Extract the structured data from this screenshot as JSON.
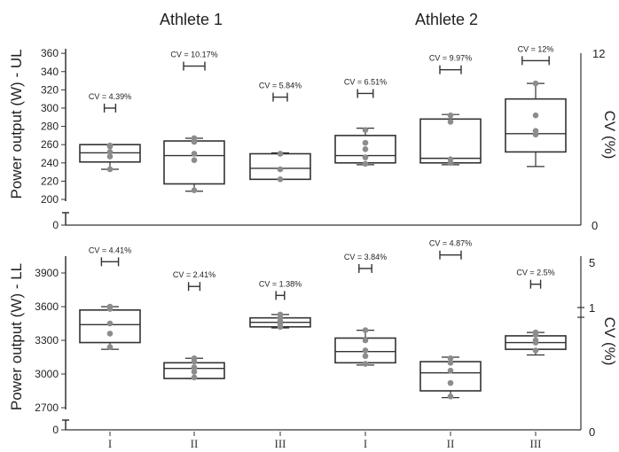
{
  "headers": [
    "Athlete 1",
    "Athlete 2"
  ],
  "chart_data": [
    {
      "type": "box",
      "ylabel": "Power output (W) - UL",
      "y2label": "CV (%)",
      "yticks": [
        200,
        220,
        240,
        260,
        280,
        300,
        320,
        340,
        360
      ],
      "ylim": [
        200,
        365
      ],
      "y2ticks": [
        "12",
        "0"
      ],
      "y_break_tick": "0",
      "categories": [
        "I",
        "II",
        "III",
        "I",
        "II",
        "III"
      ],
      "groups": [
        {
          "min": 233,
          "q1": 241,
          "median": 251,
          "q3": 260,
          "max": 260,
          "points": [
            233,
            247,
            252,
            258,
            259
          ],
          "cv_label": "CV = 4.39%",
          "cv_bar_y": 300,
          "cv_bar_width": 0.4
        },
        {
          "min": 209,
          "q1": 217,
          "median": 248,
          "q3": 264,
          "max": 267,
          "points": [
            210,
            243,
            250,
            263,
            267
          ],
          "cv_label": "CV = 10.17%",
          "cv_bar_y": 346,
          "cv_bar_width": 0.75
        },
        {
          "min": 222,
          "q1": 222,
          "median": 234,
          "q3": 250,
          "max": 251,
          "points": [
            222,
            233,
            250
          ],
          "cv_label": "CV = 5.84%",
          "cv_bar_y": 312,
          "cv_bar_width": 0.5
        },
        {
          "min": 238,
          "q1": 240,
          "median": 248,
          "q3": 270,
          "max": 278,
          "points": [
            239,
            246,
            255,
            262,
            276
          ],
          "cv_label": "CV = 6.51%",
          "cv_bar_y": 316,
          "cv_bar_width": 0.55
        },
        {
          "min": 238,
          "q1": 240,
          "median": 245,
          "q3": 288,
          "max": 293,
          "points": [
            240,
            244,
            285,
            292
          ],
          "cv_label": "CV = 9.97%",
          "cv_bar_y": 342,
          "cv_bar_width": 0.75
        },
        {
          "min": 236,
          "q1": 252,
          "median": 272,
          "q3": 310,
          "max": 327,
          "points": [
            271,
            275,
            292,
            327
          ],
          "cv_label": "CV = 12%",
          "cv_bar_y": 352,
          "cv_bar_width": 0.95
        }
      ]
    },
    {
      "type": "box",
      "ylabel": "Power output (W) - LL",
      "y2label": "CV (%)",
      "yticks": [
        2700,
        3000,
        3300,
        3600,
        3900
      ],
      "ylim": [
        2700,
        4050
      ],
      "y2ticks": [
        "5",
        "1",
        "0"
      ],
      "y_break_tick": "0",
      "categories": [
        "I",
        "II",
        "III",
        "I",
        "II",
        "III"
      ],
      "groups": [
        {
          "min": 3220,
          "q1": 3280,
          "median": 3440,
          "q3": 3570,
          "max": 3600,
          "points": [
            3240,
            3360,
            3450,
            3580,
            3600
          ],
          "cv_label": "CV = 4.41%",
          "cv_bar_y": 4000,
          "cv_bar_width": 0.6
        },
        {
          "min": 2960,
          "q1": 2960,
          "median": 3050,
          "q3": 3100,
          "max": 3140,
          "points": [
            2970,
            3020,
            3060,
            3110,
            3140
          ],
          "cv_label": "CV = 2.41%",
          "cv_bar_y": 3780,
          "cv_bar_width": 0.4
        },
        {
          "min": 3410,
          "q1": 3420,
          "median": 3460,
          "q3": 3500,
          "max": 3530,
          "points": [
            3420,
            3450,
            3470,
            3500,
            3530
          ],
          "cv_label": "CV = 1.38%",
          "cv_bar_y": 3700,
          "cv_bar_width": 0.3
        },
        {
          "min": 3080,
          "q1": 3100,
          "median": 3200,
          "q3": 3320,
          "max": 3390,
          "points": [
            3090,
            3160,
            3210,
            3300,
            3390
          ],
          "cv_label": "CV = 3.84%",
          "cv_bar_y": 3940,
          "cv_bar_width": 0.45
        },
        {
          "min": 2790,
          "q1": 2850,
          "median": 3010,
          "q3": 3110,
          "max": 3150,
          "points": [
            2800,
            2920,
            3030,
            3100,
            3140
          ],
          "cv_label": "CV = 4.87%",
          "cv_bar_y": 4060,
          "cv_bar_width": 0.75
        },
        {
          "min": 3170,
          "q1": 3220,
          "median": 3280,
          "q3": 3340,
          "max": 3370,
          "points": [
            3210,
            3280,
            3300,
            3350,
            3370
          ],
          "cv_label": "CV = 2.5%",
          "cv_bar_y": 3800,
          "cv_bar_width": 0.35
        }
      ]
    }
  ]
}
